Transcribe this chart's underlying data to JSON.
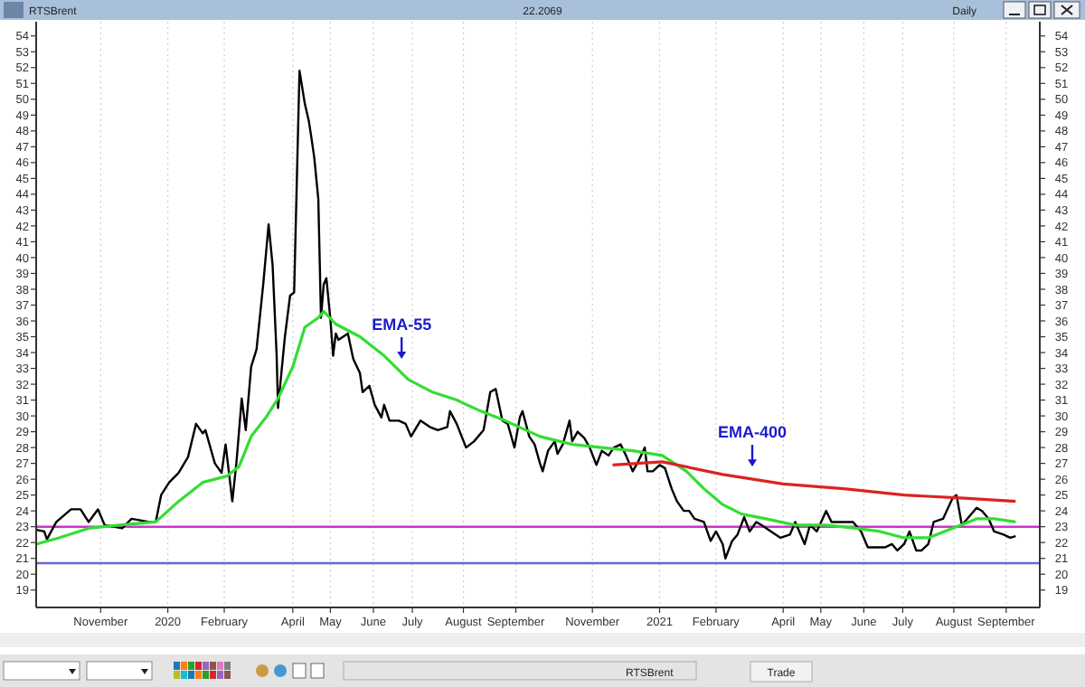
{
  "chart_data": {
    "type": "line",
    "title": "RTSBrent",
    "annotations": [
      "22.2069",
      "Daily",
      "RTSBrent",
      "Trade",
      {
        "text": "EMA-55",
        "x": "2020-07-02",
        "y": 33.6
      },
      {
        "text": "EMA-400",
        "x": "2021-03-20",
        "y": 26.8
      }
    ],
    "xlim": [
      "2019-10-04",
      "2021-10-20"
    ],
    "xticks": [
      {
        "value": "2019-11-21",
        "label": "November"
      },
      {
        "value": "2020-01-10",
        "label": "2020"
      },
      {
        "value": "2020-02-21",
        "label": "February"
      },
      {
        "value": "2020-04-12",
        "label": "April"
      },
      {
        "value": "2020-05-10",
        "label": "May"
      },
      {
        "value": "2020-06-11",
        "label": "June"
      },
      {
        "value": "2020-07-10",
        "label": "July"
      },
      {
        "value": "2020-08-17",
        "label": "August"
      },
      {
        "value": "2020-09-25",
        "label": "September"
      },
      {
        "value": "2020-11-21",
        "label": "November"
      },
      {
        "value": "2021-01-10",
        "label": "2021"
      },
      {
        "value": "2021-02-21",
        "label": "February"
      },
      {
        "value": "2021-04-12",
        "label": "April"
      },
      {
        "value": "2021-05-10",
        "label": "May"
      },
      {
        "value": "2021-06-11",
        "label": "June"
      },
      {
        "value": "2021-07-10",
        "label": "July"
      },
      {
        "value": "2021-08-17",
        "label": "August"
      },
      {
        "value": "2021-09-25",
        "label": "September"
      }
    ],
    "ylim": [
      17.9,
      54.9
    ],
    "yticks": [
      19,
      20,
      21,
      22,
      23,
      24,
      25,
      26,
      27,
      28,
      29,
      30,
      31,
      32,
      33,
      34,
      35,
      36,
      37,
      38,
      39,
      40,
      41,
      42,
      43,
      44,
      45,
      46,
      47,
      48,
      49,
      50,
      51,
      52,
      53,
      54
    ],
    "y2lim": [
      17.9,
      54.9
    ],
    "y2ticks": [
      19,
      20,
      21,
      22,
      23,
      24,
      25,
      26,
      27,
      28,
      29,
      30,
      31,
      32,
      33,
      34,
      35,
      36,
      37,
      38,
      39,
      40,
      41,
      42,
      43,
      44,
      45,
      46,
      47,
      48,
      49,
      50,
      51,
      52,
      53,
      54
    ],
    "grid": "x",
    "marker": "none",
    "line_style": "solid",
    "ref_lines": [
      {
        "axis": "y",
        "value": 23,
        "color": "#cc33cc"
      },
      {
        "axis": "y",
        "value": 20.7,
        "color": "#6666dd"
      }
    ],
    "series": [
      {
        "color": "#000000",
        "x": [
          "2019-10-04",
          "2019-10-10",
          "2019-10-12",
          "2019-10-19",
          "2019-10-30",
          "2019-11-06",
          "2019-11-12",
          "2019-11-19",
          "2019-11-24",
          "2019-12-07",
          "2019-12-14",
          "2019-12-27",
          "2020-01-01",
          "2020-01-05",
          "2020-01-11",
          "2020-01-18",
          "2020-01-25",
          "2020-01-31",
          "2020-02-05",
          "2020-02-07",
          "2020-02-14",
          "2020-02-19",
          "2020-02-22",
          "2020-02-27",
          "2020-03-01",
          "2020-03-05",
          "2020-03-08",
          "2020-03-12",
          "2020-03-16",
          "2020-03-21",
          "2020-03-25",
          "2020-03-28",
          "2020-03-31",
          "2020-04-01",
          "2020-04-06",
          "2020-04-10",
          "2020-04-13",
          "2020-04-17",
          "2020-04-21",
          "2020-04-24",
          "2020-04-26",
          "2020-04-28",
          "2020-05-01",
          "2020-05-03",
          "2020-05-05",
          "2020-05-07",
          "2020-05-10",
          "2020-05-12",
          "2020-05-14",
          "2020-05-16",
          "2020-05-23",
          "2020-05-27",
          "2020-06-01",
          "2020-06-03",
          "2020-06-08",
          "2020-06-12",
          "2020-06-17",
          "2020-06-19",
          "2020-06-23",
          "2020-06-30",
          "2020-07-05",
          "2020-07-09",
          "2020-07-16",
          "2020-07-23",
          "2020-07-29",
          "2020-08-05",
          "2020-08-07",
          "2020-08-12",
          "2020-08-19",
          "2020-08-25",
          "2020-09-01",
          "2020-09-06",
          "2020-09-10",
          "2020-09-15",
          "2020-09-19",
          "2020-09-24",
          "2020-09-28",
          "2020-09-30",
          "2020-10-05",
          "2020-10-09",
          "2020-10-13",
          "2020-10-15",
          "2020-10-19",
          "2020-10-24",
          "2020-10-26",
          "2020-10-30",
          "2020-11-04",
          "2020-11-06",
          "2020-11-10",
          "2020-11-15",
          "2020-11-19",
          "2020-11-24",
          "2020-11-28",
          "2020-12-03",
          "2020-12-07",
          "2020-12-12",
          "2020-12-16",
          "2020-12-21",
          "2020-12-25",
          "2020-12-30",
          "2021-01-01",
          "2021-01-05",
          "2021-01-10",
          "2021-01-14",
          "2021-01-19",
          "2021-01-23",
          "2021-01-28",
          "2021-02-01",
          "2021-02-05",
          "2021-02-12",
          "2021-02-17",
          "2021-02-21",
          "2021-02-26",
          "2021-02-28",
          "2021-03-05",
          "2021-03-09",
          "2021-03-14",
          "2021-03-18",
          "2021-03-23",
          "2021-03-27",
          "2021-04-03",
          "2021-04-10",
          "2021-04-17",
          "2021-04-21",
          "2021-04-28",
          "2021-05-02",
          "2021-05-07",
          "2021-05-14",
          "2021-05-18",
          "2021-05-25",
          "2021-06-03",
          "2021-06-09",
          "2021-06-14",
          "2021-06-21",
          "2021-06-27",
          "2021-07-02",
          "2021-07-06",
          "2021-07-11",
          "2021-07-15",
          "2021-07-20",
          "2021-07-24",
          "2021-07-29",
          "2021-08-02",
          "2021-08-09",
          "2021-08-16",
          "2021-08-19",
          "2021-08-23",
          "2021-08-27",
          "2021-09-03",
          "2021-09-07",
          "2021-09-12",
          "2021-09-16",
          "2021-09-23",
          "2021-09-28",
          "2021-10-02"
        ],
        "values": [
          22.8,
          22.7,
          22.2,
          23.3,
          24.1,
          24.1,
          23.3,
          24.1,
          23.1,
          22.9,
          23.5,
          23.3,
          23.3,
          25.0,
          25.8,
          26.4,
          27.4,
          29.5,
          28.9,
          29.1,
          27.0,
          26.4,
          28.2,
          24.6,
          27.0,
          31.1,
          29.1,
          33.1,
          34.2,
          38.3,
          42.1,
          39.5,
          33.8,
          30.5,
          34.9,
          37.6,
          37.8,
          51.8,
          49.7,
          48.6,
          47.5,
          46.3,
          43.7,
          36.2,
          38.3,
          38.7,
          36.1,
          33.8,
          35.2,
          34.8,
          35.2,
          33.6,
          32.7,
          31.5,
          31.9,
          30.7,
          29.9,
          30.7,
          29.7,
          29.7,
          29.5,
          28.7,
          29.7,
          29.3,
          29.1,
          29.3,
          30.3,
          29.5,
          28.0,
          28.4,
          29.1,
          31.5,
          31.7,
          29.7,
          29.5,
          28.0,
          29.9,
          30.3,
          28.7,
          28.2,
          27.0,
          26.5,
          27.8,
          28.4,
          27.6,
          28.2,
          29.7,
          28.4,
          29.0,
          28.6,
          28.0,
          26.9,
          27.8,
          27.5,
          28.0,
          28.2,
          27.5,
          26.5,
          27.1,
          28.0,
          26.5,
          26.5,
          26.9,
          26.7,
          25.4,
          24.6,
          24.0,
          24.0,
          23.5,
          23.3,
          22.1,
          22.7,
          21.9,
          21.0,
          22.1,
          22.5,
          23.6,
          22.7,
          23.3,
          23.1,
          22.7,
          22.3,
          22.5,
          23.3,
          21.9,
          23.1,
          22.7,
          24.0,
          23.3,
          23.3,
          23.3,
          22.7,
          21.7,
          21.7,
          21.7,
          21.9,
          21.5,
          21.9,
          22.7,
          21.5,
          21.5,
          21.9,
          23.3,
          23.5,
          24.8,
          25.0,
          23.1,
          23.5,
          24.2,
          24.0,
          23.5,
          22.7,
          22.5,
          22.3,
          22.4
        ]
      },
      {
        "color": "#33dd33",
        "x": [
          "2019-10-04",
          "2019-10-21",
          "2019-11-12",
          "2019-12-05",
          "2020-01-01",
          "2020-01-18",
          "2020-02-05",
          "2020-02-23",
          "2020-03-03",
          "2020-03-12",
          "2020-03-23",
          "2020-04-01",
          "2020-04-12",
          "2020-04-21",
          "2020-05-01",
          "2020-05-05",
          "2020-05-14",
          "2020-06-01",
          "2020-06-19",
          "2020-07-07",
          "2020-07-25",
          "2020-08-12",
          "2020-08-30",
          "2020-09-17",
          "2020-10-13",
          "2020-11-06",
          "2020-11-28",
          "2020-12-21",
          "2021-01-12",
          "2021-01-30",
          "2021-02-12",
          "2021-02-26",
          "2021-03-12",
          "2021-03-30",
          "2021-04-21",
          "2021-05-14",
          "2021-06-05",
          "2021-06-23",
          "2021-07-11",
          "2021-07-29",
          "2021-08-16",
          "2021-09-03",
          "2021-09-16",
          "2021-10-02"
        ],
        "values": [
          21.9,
          22.3,
          22.9,
          23.1,
          23.3,
          24.6,
          25.8,
          26.2,
          26.8,
          28.7,
          29.9,
          31.1,
          33.1,
          35.6,
          36.2,
          36.6,
          35.8,
          35.0,
          33.8,
          32.3,
          31.5,
          31.0,
          30.3,
          29.7,
          28.7,
          28.2,
          28.0,
          27.8,
          27.5,
          26.5,
          25.4,
          24.4,
          23.8,
          23.5,
          23.1,
          23.1,
          22.9,
          22.7,
          22.3,
          22.3,
          22.9,
          23.5,
          23.5,
          23.3
        ]
      },
      {
        "color": "#dd2222",
        "x": [
          "2020-12-06",
          "2021-01-12",
          "2021-02-26",
          "2021-04-12",
          "2021-05-27",
          "2021-07-11",
          "2021-08-25",
          "2021-10-02"
        ],
        "values": [
          26.9,
          27.1,
          26.3,
          25.7,
          25.4,
          25.0,
          24.8,
          24.6
        ]
      }
    ]
  }
}
